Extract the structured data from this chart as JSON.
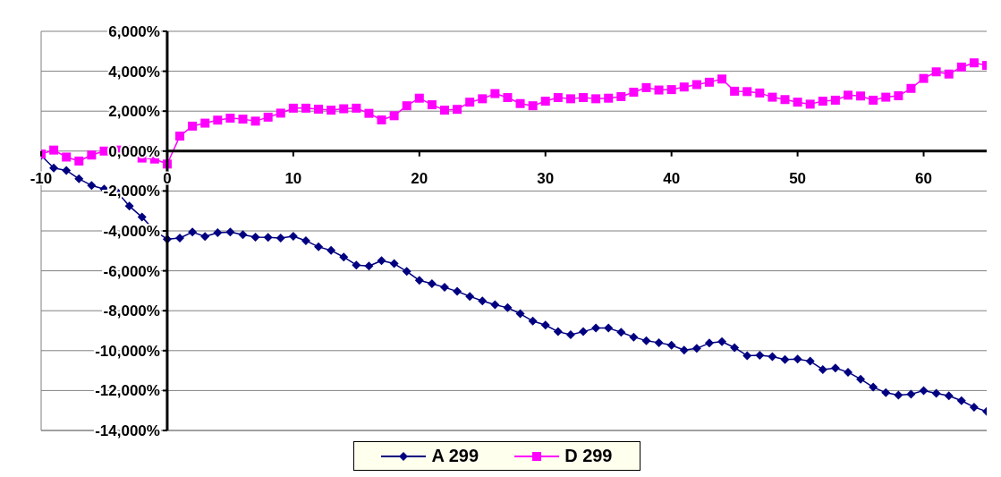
{
  "chart_data": {
    "type": "line",
    "x": [
      -10,
      -9,
      -8,
      -7,
      -6,
      -5,
      -4,
      -3,
      -2,
      -1,
      0,
      1,
      2,
      3,
      4,
      5,
      6,
      7,
      8,
      9,
      10,
      11,
      12,
      13,
      14,
      15,
      16,
      17,
      18,
      19,
      20,
      21,
      22,
      23,
      24,
      25,
      26,
      27,
      28,
      29,
      30,
      31,
      32,
      33,
      34,
      35,
      36,
      37,
      38,
      39,
      40,
      41,
      42,
      43,
      44,
      45,
      46,
      47,
      48,
      49,
      50,
      51,
      52,
      53,
      54,
      55,
      56,
      57,
      58,
      59,
      60,
      61,
      62,
      63,
      64,
      65
    ],
    "series": [
      {
        "name": "A 299",
        "color": "#000080",
        "marker": "diamond",
        "values": [
          -220,
          -850,
          -970,
          -1390,
          -1720,
          -1900,
          -2040,
          -2760,
          -3310,
          -3980,
          -4420,
          -4360,
          -4060,
          -4280,
          -4090,
          -4060,
          -4190,
          -4310,
          -4320,
          -4360,
          -4270,
          -4490,
          -4800,
          -4980,
          -5310,
          -5710,
          -5760,
          -5490,
          -5640,
          -6030,
          -6480,
          -6650,
          -6830,
          -7030,
          -7280,
          -7510,
          -7700,
          -7850,
          -8150,
          -8520,
          -8720,
          -9050,
          -9200,
          -9050,
          -8870,
          -8870,
          -9080,
          -9320,
          -9500,
          -9600,
          -9730,
          -9970,
          -9890,
          -9620,
          -9550,
          -9850,
          -10250,
          -10230,
          -10300,
          -10450,
          -10420,
          -10530,
          -10950,
          -10870,
          -11080,
          -11430,
          -11830,
          -12110,
          -12230,
          -12180,
          -12000,
          -12140,
          -12260,
          -12510,
          -12830,
          -13050
        ]
      },
      {
        "name": "D 299",
        "color": "#ff00ff",
        "marker": "square",
        "values": [
          -150,
          50,
          -300,
          -500,
          -200,
          0,
          50,
          50,
          -350,
          -400,
          -650,
          750,
          1250,
          1400,
          1550,
          1650,
          1600,
          1500,
          1700,
          1900,
          2150,
          2150,
          2100,
          2050,
          2120,
          2150,
          1890,
          1560,
          1770,
          2270,
          2650,
          2320,
          2050,
          2090,
          2450,
          2620,
          2880,
          2680,
          2380,
          2270,
          2500,
          2680,
          2620,
          2680,
          2620,
          2650,
          2730,
          2950,
          3180,
          3060,
          3080,
          3210,
          3330,
          3450,
          3610,
          3000,
          2980,
          2910,
          2700,
          2580,
          2450,
          2350,
          2500,
          2550,
          2800,
          2760,
          2550,
          2700,
          2770,
          3140,
          3640,
          3970,
          3860,
          4210,
          4420,
          4290
        ]
      }
    ],
    "xlim": [
      -10,
      65
    ],
    "xticks": [
      -10,
      0,
      10,
      20,
      30,
      40,
      50,
      60
    ],
    "ylim": [
      -14000,
      6000
    ],
    "yticks": [
      {
        "value": -14000,
        "label": "-14,000%"
      },
      {
        "value": -12000,
        "label": "-12,000%"
      },
      {
        "value": -10000,
        "label": "-10,000%"
      },
      {
        "value": -8000,
        "label": "-8,000%"
      },
      {
        "value": -6000,
        "label": "-6,000%"
      },
      {
        "value": -4000,
        "label": "-4,000%"
      },
      {
        "value": -2000,
        "label": "-2,000%"
      },
      {
        "value": 0,
        "label": "0,000%"
      },
      {
        "value": 2000,
        "label": "2,000%"
      },
      {
        "value": 4000,
        "label": "4,000%"
      },
      {
        "value": 6000,
        "label": "6,000%"
      }
    ],
    "grid": "y",
    "legend": "bottom"
  }
}
